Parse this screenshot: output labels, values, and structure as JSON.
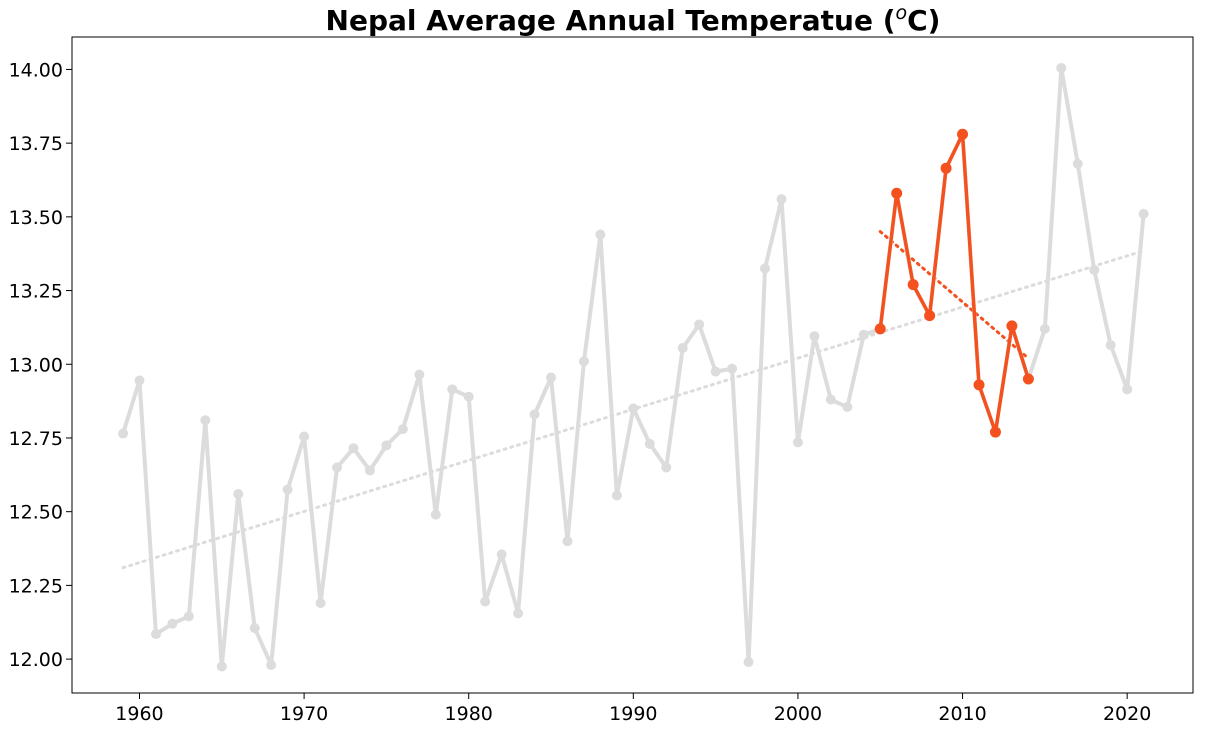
{
  "chart_data": {
    "type": "line",
    "title": "Nepal Average Annual Temperatue (",
    "title_sup": "o",
    "title_suffix": "C)",
    "xlabel": "",
    "ylabel": "",
    "xlim": [
      1955.9,
      2024
    ],
    "ylim": [
      11.885,
      14.11
    ],
    "x_ticks": [
      1960,
      1970,
      1980,
      1990,
      2000,
      2010,
      2020
    ],
    "y_ticks": [
      12.0,
      12.25,
      12.5,
      12.75,
      13.0,
      13.25,
      13.5,
      13.75,
      14.0
    ],
    "y_tick_labels": [
      "12.00",
      "12.25",
      "12.50",
      "12.75",
      "13.00",
      "13.25",
      "13.50",
      "13.75",
      "14.00"
    ],
    "grid": false,
    "colors": {
      "base": "#dcdcdc",
      "highlight": "#f4511e",
      "trend": "#dcdcdc",
      "highlight_trend": "#f4511e"
    },
    "series": [
      {
        "x": [
          1959,
          1960,
          1961,
          1962,
          1963,
          1964,
          1965,
          1966,
          1967,
          1968,
          1969,
          1970,
          1971,
          1972,
          1973,
          1974,
          1975,
          1976,
          1977,
          1978,
          1979,
          1980,
          1981,
          1982,
          1983,
          1984,
          1985,
          1986,
          1987,
          1988,
          1989,
          1990,
          1991,
          1992,
          1993,
          1994,
          1995,
          1996,
          1997,
          1998,
          1999,
          2000,
          2001,
          2002,
          2003,
          2004,
          2005,
          2006,
          2007,
          2008,
          2009,
          2010,
          2011,
          2012,
          2013,
          2014,
          2015,
          2016,
          2017,
          2018,
          2019,
          2020,
          2021
        ],
        "values": [
          12.765,
          12.945,
          12.085,
          12.12,
          12.145,
          12.81,
          11.975,
          12.56,
          12.105,
          11.98,
          12.575,
          12.755,
          12.19,
          12.65,
          12.715,
          12.64,
          12.725,
          12.78,
          12.965,
          12.49,
          12.915,
          12.89,
          12.195,
          12.355,
          12.155,
          12.83,
          12.955,
          12.4,
          13.01,
          13.44,
          12.555,
          12.85,
          12.73,
          12.65,
          13.055,
          13.135,
          12.975,
          12.985,
          11.99,
          13.325,
          13.56,
          12.735,
          13.095,
          12.88,
          12.855,
          13.1,
          13.12,
          13.58,
          13.27,
          13.165,
          13.665,
          13.78,
          12.93,
          12.77,
          13.13,
          12.95,
          13.12,
          14.005,
          13.68,
          13.32,
          13.065,
          12.915,
          13.51
        ]
      },
      {
        "x": [
          2005,
          2006,
          2007,
          2008,
          2009,
          2010,
          2011,
          2012,
          2013,
          2014
        ],
        "values": [
          13.12,
          13.58,
          13.27,
          13.165,
          13.665,
          13.78,
          12.93,
          12.77,
          13.13,
          12.95
        ]
      }
    ],
    "trendlines": [
      {
        "x": [
          1959,
          2021
        ],
        "values": [
          12.31,
          13.385
        ]
      },
      {
        "x": [
          2005,
          2014
        ],
        "values": [
          13.45,
          13.02
        ]
      }
    ]
  }
}
